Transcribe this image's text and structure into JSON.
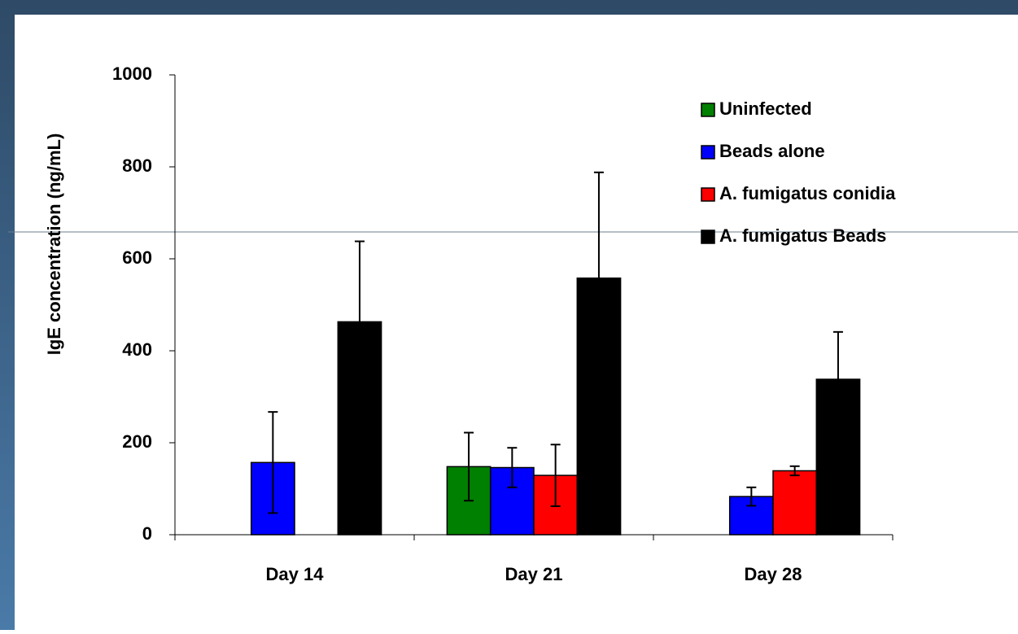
{
  "chart_data": {
    "type": "bar",
    "y_label": "IgE concentration (ng/mL)",
    "categories": [
      "Day 14",
      "Day 21",
      "Day 28"
    ],
    "series": [
      {
        "name": "Uninfected",
        "color": "#008000",
        "values": [
          null,
          148,
          null
        ],
        "errors": [
          null,
          74,
          null
        ]
      },
      {
        "name": "Beads alone",
        "color": "#0000ff",
        "values": [
          157,
          146,
          83
        ],
        "errors": [
          110,
          43,
          20
        ]
      },
      {
        "name": "A. fumigatus conidia",
        "color": "#ff0000",
        "values": [
          null,
          129,
          139
        ],
        "errors": [
          null,
          67,
          10
        ]
      },
      {
        "name": "A. fumigatus Beads",
        "color": "#000000",
        "values": [
          463,
          558,
          338
        ],
        "errors": [
          175,
          230,
          103
        ]
      }
    ],
    "ylim": [
      0,
      1000
    ],
    "yticks": [
      0,
      200,
      400,
      600,
      800,
      1000
    ],
    "legend": "upper right",
    "grid": false
  }
}
